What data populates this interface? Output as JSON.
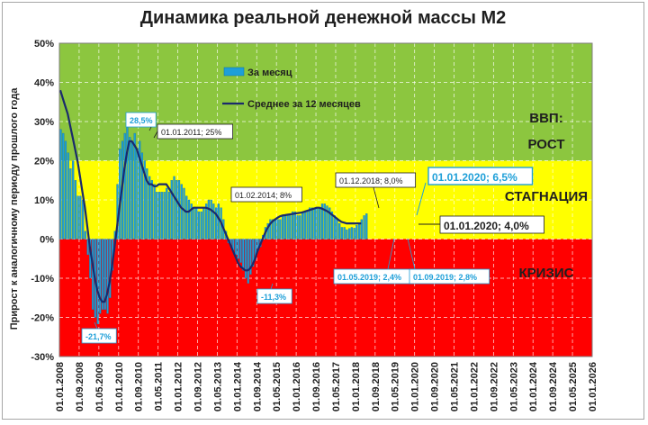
{
  "chart_data": {
    "type": "bar",
    "title": "Динамика реальной денежной массы М2",
    "ylabel": "Прирост к аналогичному периоду прошлого года",
    "xlabel": "",
    "ylim": [
      -30,
      50
    ],
    "xlim": [
      "2008-01",
      "2026-01"
    ],
    "y_ticks": [
      "50%",
      "40%",
      "30%",
      "20%",
      "10%",
      "0%",
      "-10%",
      "-20%",
      "-30%"
    ],
    "x_ticks": [
      "01.01.2008",
      "01.09.2008",
      "01.05.2009",
      "01.01.2010",
      "01.09.2010",
      "01.05.2011",
      "01.01.2012",
      "01.09.2012",
      "01.05.2013",
      "01.01.2014",
      "01.09.2014",
      "01.05.2015",
      "01.01.2016",
      "01.09.2016",
      "01.05.2017",
      "01.01.2018",
      "01.09.2018",
      "01.05.2019",
      "01.01.2020",
      "01.09.2020",
      "01.05.2021",
      "01.01.2022",
      "01.09.2022",
      "01.05.2023",
      "01.01.2024",
      "01.09.2024",
      "01.05.2025",
      "01.01.2026"
    ],
    "zones": [
      {
        "label": "ВВП:",
        "from": 20,
        "to": 50,
        "color": "#8cc63f"
      },
      {
        "label": "РОСТ",
        "from": 20,
        "to": 50,
        "color": "#8cc63f"
      },
      {
        "label": "СТАГНАЦИЯ",
        "from": 0,
        "to": 20,
        "color": "#ffff00"
      },
      {
        "label": "КРИЗИС",
        "from": -30,
        "to": 0,
        "color": "#ff0000"
      }
    ],
    "legend_position": "top-left",
    "series": [
      {
        "name": "За месяц",
        "kind": "bar",
        "color": "#1e9fd8",
        "start": "2008-01",
        "values": [
          28,
          27,
          25,
          22,
          18,
          20,
          15,
          11,
          11,
          10,
          2,
          -4,
          -10,
          -18,
          -20,
          -21.7,
          -19,
          -18,
          -18,
          -19,
          -15,
          -8,
          2,
          14,
          23,
          25,
          27,
          28.5,
          26,
          25,
          27,
          23,
          25,
          22,
          20,
          18,
          16,
          15,
          14,
          12,
          12,
          12,
          12,
          13,
          12,
          15,
          16,
          15,
          15,
          14,
          13,
          11,
          10,
          9,
          8,
          8,
          7,
          7,
          8,
          9,
          10,
          10,
          9,
          8,
          9,
          8,
          5,
          2,
          -1,
          -2,
          -3,
          -4,
          -5,
          -6,
          -8,
          -10,
          -11.3,
          -9,
          -7,
          -5,
          -3,
          -2,
          1,
          3,
          4,
          5,
          5,
          5,
          5,
          5,
          6,
          6,
          6,
          6,
          7,
          7,
          6,
          6,
          7,
          7,
          7,
          8,
          8,
          8,
          8,
          8,
          9,
          9,
          8.5,
          8,
          7,
          6,
          5,
          4,
          3,
          3,
          2.4,
          2.7,
          3,
          2.8,
          3.5,
          4,
          5,
          6,
          6.5
        ]
      },
      {
        "name": "Среднее за 12 месяцев",
        "kind": "line",
        "color": "#1a2a6c",
        "start": "2008-01",
        "values": [
          38,
          36,
          34,
          32,
          29,
          26,
          23,
          20,
          16,
          12,
          8,
          3,
          -2,
          -6,
          -10,
          -13,
          -15,
          -16,
          -16,
          -14,
          -11,
          -7,
          -2,
          3,
          8,
          13,
          18,
          22,
          25,
          25,
          24,
          23,
          21,
          19,
          17,
          15,
          14,
          14,
          13.5,
          13.5,
          14,
          14,
          14,
          14,
          13,
          12,
          11,
          10,
          9,
          8,
          7.5,
          7,
          7,
          7.5,
          8,
          8,
          8,
          8,
          8,
          8,
          7.8,
          7.5,
          7,
          6.5,
          5.5,
          4.5,
          3,
          1.5,
          0,
          -1.5,
          -3,
          -4.5,
          -6,
          -7,
          -7.5,
          -8,
          -8,
          -7.5,
          -6.5,
          -5,
          -3,
          -1.5,
          0,
          1.5,
          2.8,
          3.8,
          4.5,
          5,
          5.4,
          5.8,
          6,
          6.1,
          6.2,
          6.3,
          6.4,
          6.5,
          6.6,
          6.7,
          6.8,
          7,
          7.2,
          7.4,
          7.6,
          7.8,
          8,
          8,
          7.8,
          7.5,
          7.2,
          6.8,
          6.3,
          5.8,
          5.3,
          4.8,
          4.4,
          4.2,
          4.0,
          4.0,
          4.0,
          4.0,
          4.0,
          4.0,
          4.0
        ]
      }
    ],
    "annotations": [
      {
        "text": "28,5%",
        "at": "2010-04",
        "style": "callout"
      },
      {
        "text": "01.01.2011; 25%",
        "at": "2011-01",
        "style": "plain"
      },
      {
        "text": "01.02.2014; 8%",
        "at": "2014-02",
        "style": "plain"
      },
      {
        "text": "-21,7%",
        "at": "2009-04",
        "style": "callout"
      },
      {
        "text": "-11,3%",
        "at": "2015-05",
        "style": "callout"
      },
      {
        "text": "01.12.2018; 8,0%",
        "at": "2018-12",
        "style": "plain"
      },
      {
        "text": "01.01.2020; 6,5%",
        "at": "2020-01",
        "style": "callout-big"
      },
      {
        "text": "01.01.2020; 4,0%",
        "at": "2020-01",
        "style": "plain-big"
      },
      {
        "text": "01.05.2019; 2,4%",
        "at": "2019-05",
        "style": "callout-small"
      },
      {
        "text": "01.09.2019; 2,8%",
        "at": "2019-09",
        "style": "callout-small"
      }
    ]
  }
}
